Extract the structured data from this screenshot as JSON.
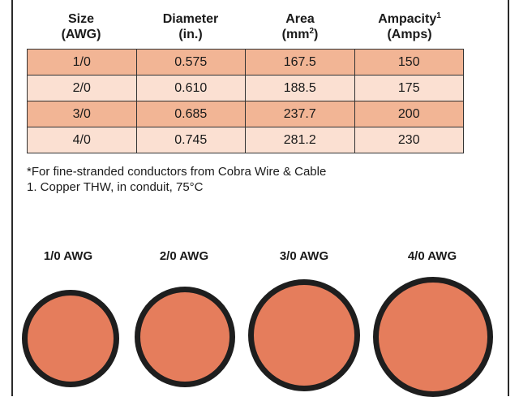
{
  "table": {
    "headers": [
      {
        "line1": "Size",
        "line2": "(AWG)",
        "sup": ""
      },
      {
        "line1": "Diameter",
        "line2": "(in.)",
        "sup": ""
      },
      {
        "line1": "Area",
        "line2_pre": "(mm",
        "line2_sup": "2",
        "line2_post": ")",
        "sup": ""
      },
      {
        "line1": "Ampacity",
        "line2": "(Amps)",
        "sup": "1"
      }
    ],
    "rows": [
      [
        "1/0",
        "0.575",
        "167.5",
        "150"
      ],
      [
        "2/0",
        "0.610",
        "188.5",
        "175"
      ],
      [
        "3/0",
        "0.685",
        "237.7",
        "200"
      ],
      [
        "4/0",
        "0.745",
        "281.2",
        "230"
      ]
    ]
  },
  "notes": [
    "*For fine-stranded conductors from Cobra Wire & Cable",
    "1. Copper THW, in conduit, 75°C"
  ],
  "wires": [
    {
      "label": "1/0 AWG"
    },
    {
      "label": "2/0 AWG"
    },
    {
      "label": "3/0 AWG"
    },
    {
      "label": "4/0 AWG"
    }
  ],
  "colors": {
    "row_dark": "#f2b595",
    "row_light": "#fbe0d2",
    "copper": "#e57d5c",
    "insulation": "#1e1e1e"
  }
}
